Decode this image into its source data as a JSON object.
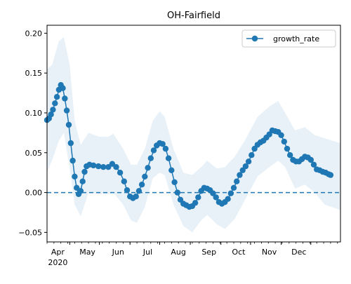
{
  "chart_data": {
    "type": "line",
    "title": "OH-Fairfield",
    "xlabel": "",
    "ylabel": "",
    "x_axis": {
      "type": "date",
      "range": [
        "2020-03-09",
        "2020-12-31"
      ],
      "month_ticks": [
        {
          "date": "2020-04-01",
          "label": "Apr",
          "sublabel": "2020"
        },
        {
          "date": "2020-05-01",
          "label": "May"
        },
        {
          "date": "2020-06-01",
          "label": "Jun"
        },
        {
          "date": "2020-07-01",
          "label": "Jul"
        },
        {
          "date": "2020-08-01",
          "label": "Aug"
        },
        {
          "date": "2020-09-01",
          "label": "Sep"
        },
        {
          "date": "2020-10-01",
          "label": "Oct"
        },
        {
          "date": "2020-11-01",
          "label": "Nov"
        },
        {
          "date": "2020-12-01",
          "label": "Dec"
        }
      ]
    },
    "y_axis": {
      "ylim": [
        -0.062,
        0.21
      ],
      "ticks": [
        {
          "value": -0.05,
          "label": "−0.05"
        },
        {
          "value": 0.0,
          "label": "0.00"
        },
        {
          "value": 0.05,
          "label": "0.05"
        },
        {
          "value": 0.1,
          "label": "0.10"
        },
        {
          "value": 0.15,
          "label": "0.15"
        },
        {
          "value": 0.2,
          "label": "0.20"
        }
      ]
    },
    "grid": false,
    "legend": {
      "position": "top-right",
      "entries": [
        "growth_rate"
      ]
    },
    "series": [
      {
        "name": "growth_rate",
        "color": "#1f77b4",
        "marker": "circle",
        "points": [
          [
            "2020-03-09",
            0.091
          ],
          [
            "2020-03-11",
            0.093
          ],
          [
            "2020-03-13",
            0.098
          ],
          [
            "2020-03-15",
            0.104
          ],
          [
            "2020-03-17",
            0.112
          ],
          [
            "2020-03-19",
            0.12
          ],
          [
            "2020-03-21",
            0.129
          ],
          [
            "2020-03-23",
            0.135
          ],
          [
            "2020-03-25",
            0.131
          ],
          [
            "2020-03-27",
            0.118
          ],
          [
            "2020-03-29",
            0.103
          ],
          [
            "2020-03-31",
            0.085
          ],
          [
            "2020-04-02",
            0.062
          ],
          [
            "2020-04-04",
            0.04
          ],
          [
            "2020-04-06",
            0.02
          ],
          [
            "2020-04-08",
            0.006
          ],
          [
            "2020-04-10",
            -0.002
          ],
          [
            "2020-04-12",
            0.002
          ],
          [
            "2020-04-14",
            0.014
          ],
          [
            "2020-04-16",
            0.026
          ],
          [
            "2020-04-18",
            0.033
          ],
          [
            "2020-04-21",
            0.035
          ],
          [
            "2020-04-25",
            0.034
          ],
          [
            "2020-04-30",
            0.033
          ],
          [
            "2020-05-05",
            0.032
          ],
          [
            "2020-05-10",
            0.032
          ],
          [
            "2020-05-14",
            0.036
          ],
          [
            "2020-05-18",
            0.032
          ],
          [
            "2020-05-22",
            0.025
          ],
          [
            "2020-05-26",
            0.014
          ],
          [
            "2020-05-29",
            0.003
          ],
          [
            "2020-06-01",
            -0.005
          ],
          [
            "2020-06-04",
            -0.007
          ],
          [
            "2020-06-07",
            -0.005
          ],
          [
            "2020-06-10",
            0.002
          ],
          [
            "2020-06-13",
            0.01
          ],
          [
            "2020-06-16",
            0.02
          ],
          [
            "2020-06-19",
            0.031
          ],
          [
            "2020-06-22",
            0.043
          ],
          [
            "2020-06-25",
            0.053
          ],
          [
            "2020-06-28",
            0.059
          ],
          [
            "2020-07-01",
            0.062
          ],
          [
            "2020-07-04",
            0.061
          ],
          [
            "2020-07-07",
            0.055
          ],
          [
            "2020-07-10",
            0.043
          ],
          [
            "2020-07-13",
            0.028
          ],
          [
            "2020-07-16",
            0.013
          ],
          [
            "2020-07-19",
            0.0
          ],
          [
            "2020-07-22",
            -0.009
          ],
          [
            "2020-07-25",
            -0.014
          ],
          [
            "2020-07-28",
            -0.016
          ],
          [
            "2020-07-31",
            -0.018
          ],
          [
            "2020-08-03",
            -0.017
          ],
          [
            "2020-08-06",
            -0.013
          ],
          [
            "2020-08-09",
            -0.006
          ],
          [
            "2020-08-12",
            0.002
          ],
          [
            "2020-08-15",
            0.006
          ],
          [
            "2020-08-18",
            0.005
          ],
          [
            "2020-08-21",
            0.003
          ],
          [
            "2020-08-24",
            -0.001
          ],
          [
            "2020-08-27",
            -0.006
          ],
          [
            "2020-08-30",
            -0.012
          ],
          [
            "2020-09-02",
            -0.014
          ],
          [
            "2020-09-05",
            -0.012
          ],
          [
            "2020-09-08",
            -0.008
          ],
          [
            "2020-09-11",
            -0.001
          ],
          [
            "2020-09-14",
            0.006
          ],
          [
            "2020-09-17",
            0.014
          ],
          [
            "2020-09-20",
            0.022
          ],
          [
            "2020-09-23",
            0.028
          ],
          [
            "2020-09-26",
            0.033
          ],
          [
            "2020-09-29",
            0.039
          ],
          [
            "2020-10-02",
            0.047
          ],
          [
            "2020-10-05",
            0.055
          ],
          [
            "2020-10-08",
            0.06
          ],
          [
            "2020-10-11",
            0.063
          ],
          [
            "2020-10-14",
            0.065
          ],
          [
            "2020-10-17",
            0.069
          ],
          [
            "2020-10-20",
            0.073
          ],
          [
            "2020-10-23",
            0.078
          ],
          [
            "2020-10-26",
            0.077
          ],
          [
            "2020-10-29",
            0.076
          ],
          [
            "2020-11-01",
            0.072
          ],
          [
            "2020-11-04",
            0.064
          ],
          [
            "2020-11-07",
            0.055
          ],
          [
            "2020-11-10",
            0.047
          ],
          [
            "2020-11-13",
            0.041
          ],
          [
            "2020-11-16",
            0.039
          ],
          [
            "2020-11-19",
            0.039
          ],
          [
            "2020-11-22",
            0.042
          ],
          [
            "2020-11-25",
            0.045
          ],
          [
            "2020-11-28",
            0.044
          ],
          [
            "2020-12-01",
            0.041
          ],
          [
            "2020-12-04",
            0.035
          ],
          [
            "2020-12-07",
            0.029
          ],
          [
            "2020-12-10",
            0.028
          ],
          [
            "2020-12-13",
            0.026
          ],
          [
            "2020-12-16",
            0.025
          ],
          [
            "2020-12-19",
            0.023
          ],
          [
            "2020-12-21",
            0.022
          ]
        ]
      }
    ],
    "baseline": {
      "y": 0.0,
      "style": "dashed",
      "color": "#1f77b4"
    },
    "confidence_band": {
      "color": "#1f77b4",
      "upper": [
        [
          "2020-03-09",
          0.155
        ],
        [
          "2020-03-14",
          0.16
        ],
        [
          "2020-03-21",
          0.19
        ],
        [
          "2020-03-26",
          0.195
        ],
        [
          "2020-04-01",
          0.16
        ],
        [
          "2020-04-06",
          0.09
        ],
        [
          "2020-04-12",
          0.06
        ],
        [
          "2020-04-20",
          0.075
        ],
        [
          "2020-05-01",
          0.07
        ],
        [
          "2020-05-10",
          0.07
        ],
        [
          "2020-05-15",
          0.074
        ],
        [
          "2020-05-25",
          0.055
        ],
        [
          "2020-06-02",
          0.035
        ],
        [
          "2020-06-08",
          0.035
        ],
        [
          "2020-06-16",
          0.055
        ],
        [
          "2020-06-24",
          0.09
        ],
        [
          "2020-07-01",
          0.102
        ],
        [
          "2020-07-06",
          0.095
        ],
        [
          "2020-07-15",
          0.055
        ],
        [
          "2020-07-25",
          0.025
        ],
        [
          "2020-08-03",
          0.022
        ],
        [
          "2020-08-12",
          0.032
        ],
        [
          "2020-08-18",
          0.04
        ],
        [
          "2020-08-28",
          0.03
        ],
        [
          "2020-09-05",
          0.032
        ],
        [
          "2020-09-15",
          0.045
        ],
        [
          "2020-09-25",
          0.065
        ],
        [
          "2020-10-08",
          0.095
        ],
        [
          "2020-10-20",
          0.108
        ],
        [
          "2020-10-29",
          0.115
        ],
        [
          "2020-11-05",
          0.1
        ],
        [
          "2020-11-15",
          0.078
        ],
        [
          "2020-11-25",
          0.082
        ],
        [
          "2020-12-05",
          0.072
        ],
        [
          "2020-12-15",
          0.068
        ],
        [
          "2020-12-31",
          0.062
        ]
      ],
      "lower": [
        [
          "2020-03-09",
          0.025
        ],
        [
          "2020-03-14",
          0.04
        ],
        [
          "2020-03-21",
          0.065
        ],
        [
          "2020-03-26",
          0.075
        ],
        [
          "2020-04-01",
          0.03
        ],
        [
          "2020-04-06",
          -0.015
        ],
        [
          "2020-04-12",
          -0.03
        ],
        [
          "2020-04-20",
          0.0
        ],
        [
          "2020-05-01",
          -0.002
        ],
        [
          "2020-05-10",
          -0.002
        ],
        [
          "2020-05-15",
          0.0
        ],
        [
          "2020-05-25",
          -0.015
        ],
        [
          "2020-06-02",
          -0.035
        ],
        [
          "2020-06-08",
          -0.038
        ],
        [
          "2020-06-16",
          -0.018
        ],
        [
          "2020-06-24",
          0.018
        ],
        [
          "2020-07-01",
          0.025
        ],
        [
          "2020-07-06",
          0.022
        ],
        [
          "2020-07-15",
          -0.015
        ],
        [
          "2020-07-25",
          -0.042
        ],
        [
          "2020-08-03",
          -0.05
        ],
        [
          "2020-08-12",
          -0.035
        ],
        [
          "2020-08-18",
          -0.028
        ],
        [
          "2020-08-28",
          -0.04
        ],
        [
          "2020-09-05",
          -0.046
        ],
        [
          "2020-09-15",
          -0.033
        ],
        [
          "2020-09-25",
          -0.01
        ],
        [
          "2020-10-08",
          0.02
        ],
        [
          "2020-10-20",
          0.032
        ],
        [
          "2020-10-29",
          0.04
        ],
        [
          "2020-11-05",
          0.032
        ],
        [
          "2020-11-15",
          0.005
        ],
        [
          "2020-11-25",
          0.01
        ],
        [
          "2020-12-05",
          0.0
        ],
        [
          "2020-12-15",
          -0.015
        ],
        [
          "2020-12-31",
          -0.022
        ]
      ]
    }
  }
}
